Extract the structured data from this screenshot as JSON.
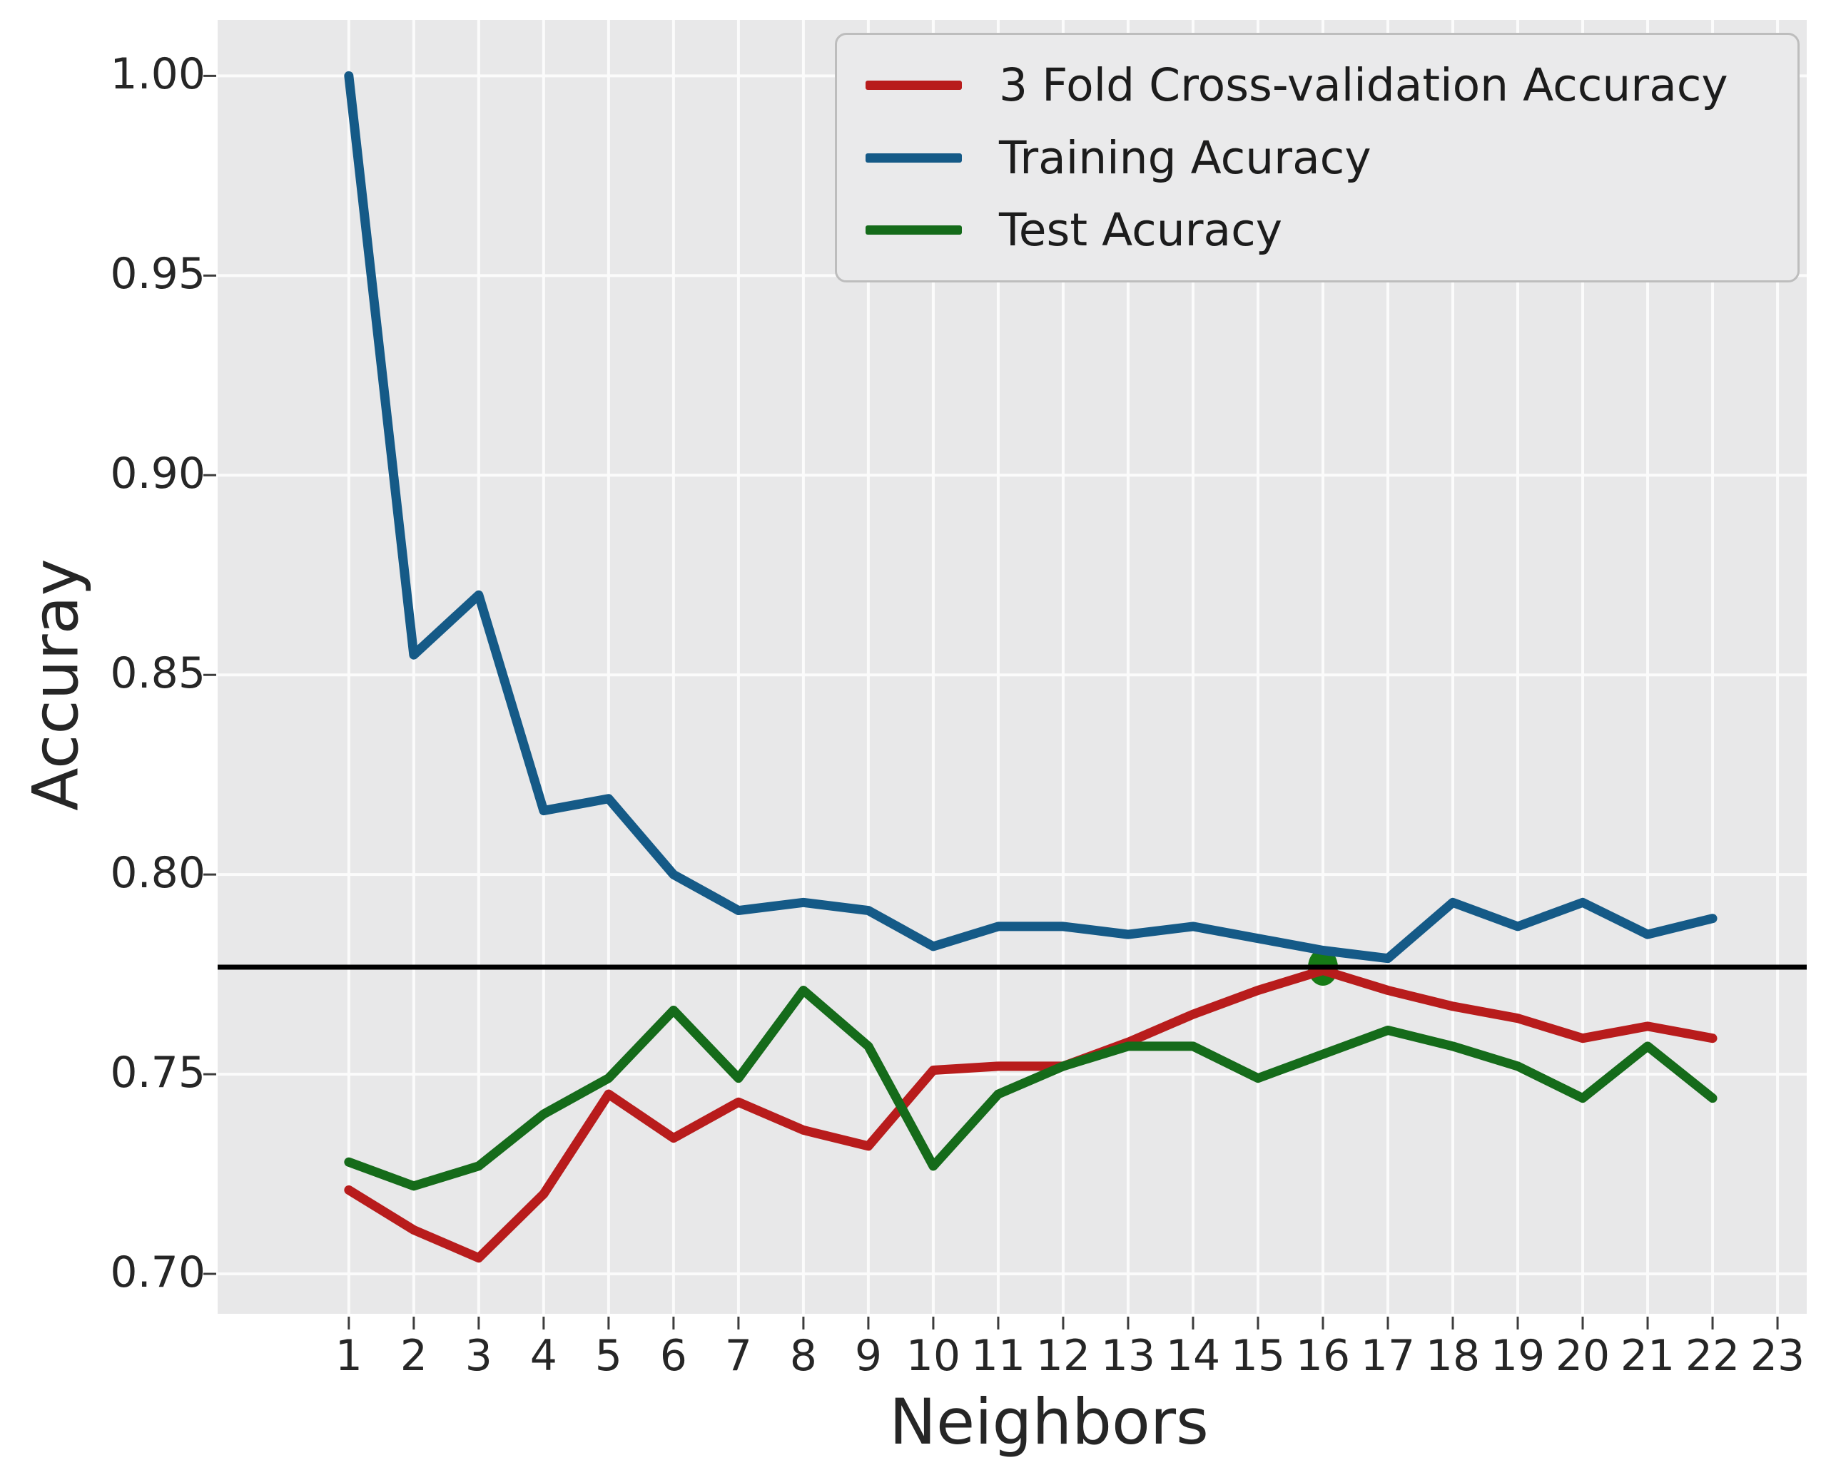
{
  "figure": {
    "background": "#ffffff",
    "plot_background": "#e8e8e9",
    "grid_color": "#fbfbfb",
    "tick_color": "#3c3c3c",
    "text_color": "#262626",
    "legend_background": "#eaeaeb",
    "legend_border": "#bdbdbd"
  },
  "axes": {
    "x_label": "Neighbors",
    "y_label": "Accuray",
    "x_tick_labels": [
      "1",
      "2",
      "3",
      "4",
      "5",
      "6",
      "7",
      "8",
      "9",
      "10",
      "11",
      "12",
      "13",
      "14",
      "15",
      "16",
      "17",
      "18",
      "19",
      "20",
      "21",
      "22",
      "23"
    ],
    "y_tick_labels": [
      "1.00",
      "0.95",
      "0.90",
      "0.85",
      "0.80",
      "0.75",
      "0.70"
    ]
  },
  "chart_data": {
    "type": "line",
    "title": "",
    "xlabel": "Neighbors",
    "ylabel": "Accuray",
    "x": [
      1,
      2,
      3,
      4,
      5,
      6,
      7,
      8,
      9,
      10,
      11,
      12,
      13,
      14,
      15,
      16,
      17,
      18,
      19,
      20,
      21,
      22
    ],
    "series": [
      {
        "name": "3 Fold Cross-validation Accuracy",
        "color": "#b81c1c",
        "values": [
          0.721,
          0.711,
          0.704,
          0.72,
          0.745,
          0.734,
          0.743,
          0.736,
          0.732,
          0.751,
          0.752,
          0.752,
          0.758,
          0.765,
          0.771,
          0.776,
          0.771,
          0.767,
          0.764,
          0.759,
          0.762,
          0.759
        ]
      },
      {
        "name": "Training Acuracy",
        "color": "#155a87",
        "values": [
          1.0,
          0.855,
          0.87,
          0.816,
          0.819,
          0.8,
          0.791,
          0.793,
          0.791,
          0.782,
          0.787,
          0.787,
          0.785,
          0.787,
          0.784,
          0.781,
          0.779,
          0.793,
          0.787,
          0.793,
          0.785,
          0.789
        ]
      },
      {
        "name": "Test Acuracy",
        "color": "#156b1a",
        "values": [
          0.728,
          0.722,
          0.727,
          0.74,
          0.749,
          0.766,
          0.749,
          0.771,
          0.757,
          0.727,
          0.745,
          0.752,
          0.757,
          0.757,
          0.749,
          0.755,
          0.761,
          0.757,
          0.752,
          0.744,
          0.757,
          0.744
        ]
      }
    ],
    "baseline": {
      "value": 0.7768,
      "color": "#000000"
    },
    "marker": {
      "x": 16,
      "value": 0.7768,
      "color": "#167a16",
      "shape": "circle"
    },
    "x_ticks": [
      1,
      2,
      3,
      4,
      5,
      6,
      7,
      8,
      9,
      10,
      11,
      12,
      13,
      14,
      15,
      16,
      17,
      18,
      19,
      20,
      21,
      22,
      23
    ],
    "y_ticks": [
      {
        "value": 1.0,
        "label": "1.00"
      },
      {
        "value": 0.95,
        "label": "0.95"
      },
      {
        "value": 0.9,
        "label": "0.90"
      },
      {
        "value": 0.85,
        "label": "0.85"
      },
      {
        "value": 0.8,
        "label": "0.80"
      },
      {
        "value": 0.75,
        "label": "0.75"
      },
      {
        "value": 0.7,
        "label": "0.70"
      }
    ],
    "xlim": [
      -1.02,
      23.45
    ],
    "ylim": [
      0.69,
      1.014
    ],
    "grid": true,
    "legend_position": "upper right"
  }
}
